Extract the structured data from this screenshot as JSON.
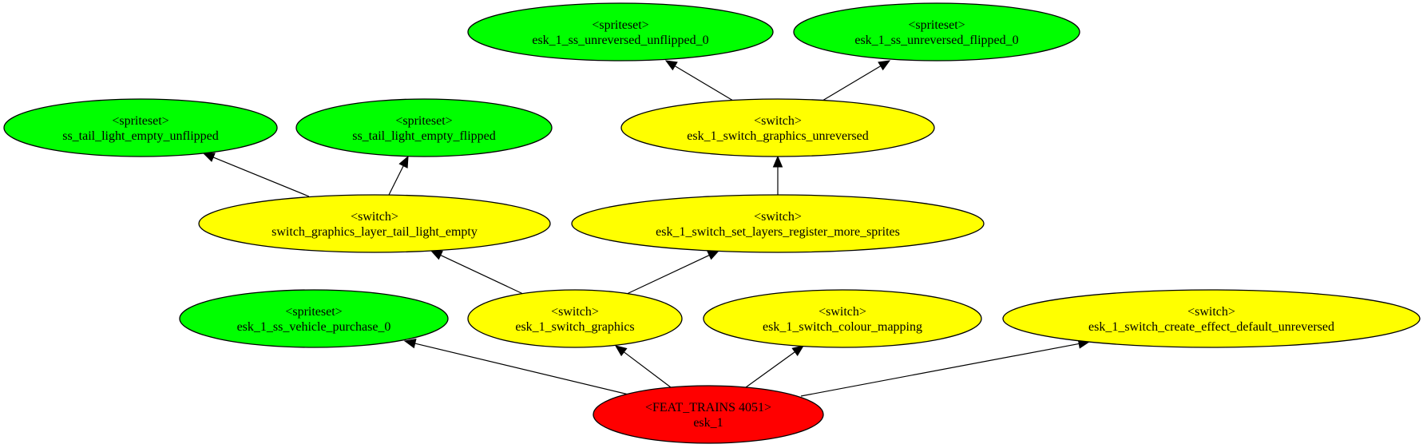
{
  "graph": {
    "colors": {
      "spriteset": "#00ff00",
      "switch": "#ffff00",
      "feat": "#ff0000"
    },
    "nodes": [
      {
        "id": "feat",
        "kind": "feat",
        "line1": "<FEAT_TRAINS 4051>",
        "line2": "esk_1"
      },
      {
        "id": "purchase",
        "kind": "spriteset",
        "line1": "<spriteset>",
        "line2": "esk_1_ss_vehicle_purchase_0"
      },
      {
        "id": "sw_graphics",
        "kind": "switch",
        "line1": "<switch>",
        "line2": "esk_1_switch_graphics"
      },
      {
        "id": "sw_colour",
        "kind": "switch",
        "line1": "<switch>",
        "line2": "esk_1_switch_colour_mapping"
      },
      {
        "id": "sw_effect",
        "kind": "switch",
        "line1": "<switch>",
        "line2": "esk_1_switch_create_effect_default_unreversed"
      },
      {
        "id": "sw_tail",
        "kind": "switch",
        "line1": "<switch>",
        "line2": "switch_graphics_layer_tail_light_empty"
      },
      {
        "id": "sw_layers",
        "kind": "switch",
        "line1": "<switch>",
        "line2": "esk_1_switch_set_layers_register_more_sprites"
      },
      {
        "id": "ss_tail_unflipped",
        "kind": "spriteset",
        "line1": "<spriteset>",
        "line2": "ss_tail_light_empty_unflipped"
      },
      {
        "id": "ss_tail_flipped",
        "kind": "spriteset",
        "line1": "<spriteset>",
        "line2": "ss_tail_light_empty_flipped"
      },
      {
        "id": "sw_unreversed",
        "kind": "switch",
        "line1": "<switch>",
        "line2": "esk_1_switch_graphics_unreversed"
      },
      {
        "id": "ss_unrev_unflipped",
        "kind": "spriteset",
        "line1": "<spriteset>",
        "line2": "esk_1_ss_unreversed_unflipped_0"
      },
      {
        "id": "ss_unrev_flipped",
        "kind": "spriteset",
        "line1": "<spriteset>",
        "line2": "esk_1_ss_unreversed_flipped_0"
      }
    ],
    "edges": [
      {
        "from": "feat",
        "to": "purchase"
      },
      {
        "from": "feat",
        "to": "sw_graphics"
      },
      {
        "from": "feat",
        "to": "sw_colour"
      },
      {
        "from": "feat",
        "to": "sw_effect"
      },
      {
        "from": "sw_graphics",
        "to": "sw_tail"
      },
      {
        "from": "sw_graphics",
        "to": "sw_layers"
      },
      {
        "from": "sw_tail",
        "to": "ss_tail_unflipped"
      },
      {
        "from": "sw_tail",
        "to": "ss_tail_flipped"
      },
      {
        "from": "sw_layers",
        "to": "sw_unreversed"
      },
      {
        "from": "sw_unreversed",
        "to": "ss_unrev_unflipped"
      },
      {
        "from": "sw_unreversed",
        "to": "ss_unrev_flipped"
      }
    ]
  }
}
